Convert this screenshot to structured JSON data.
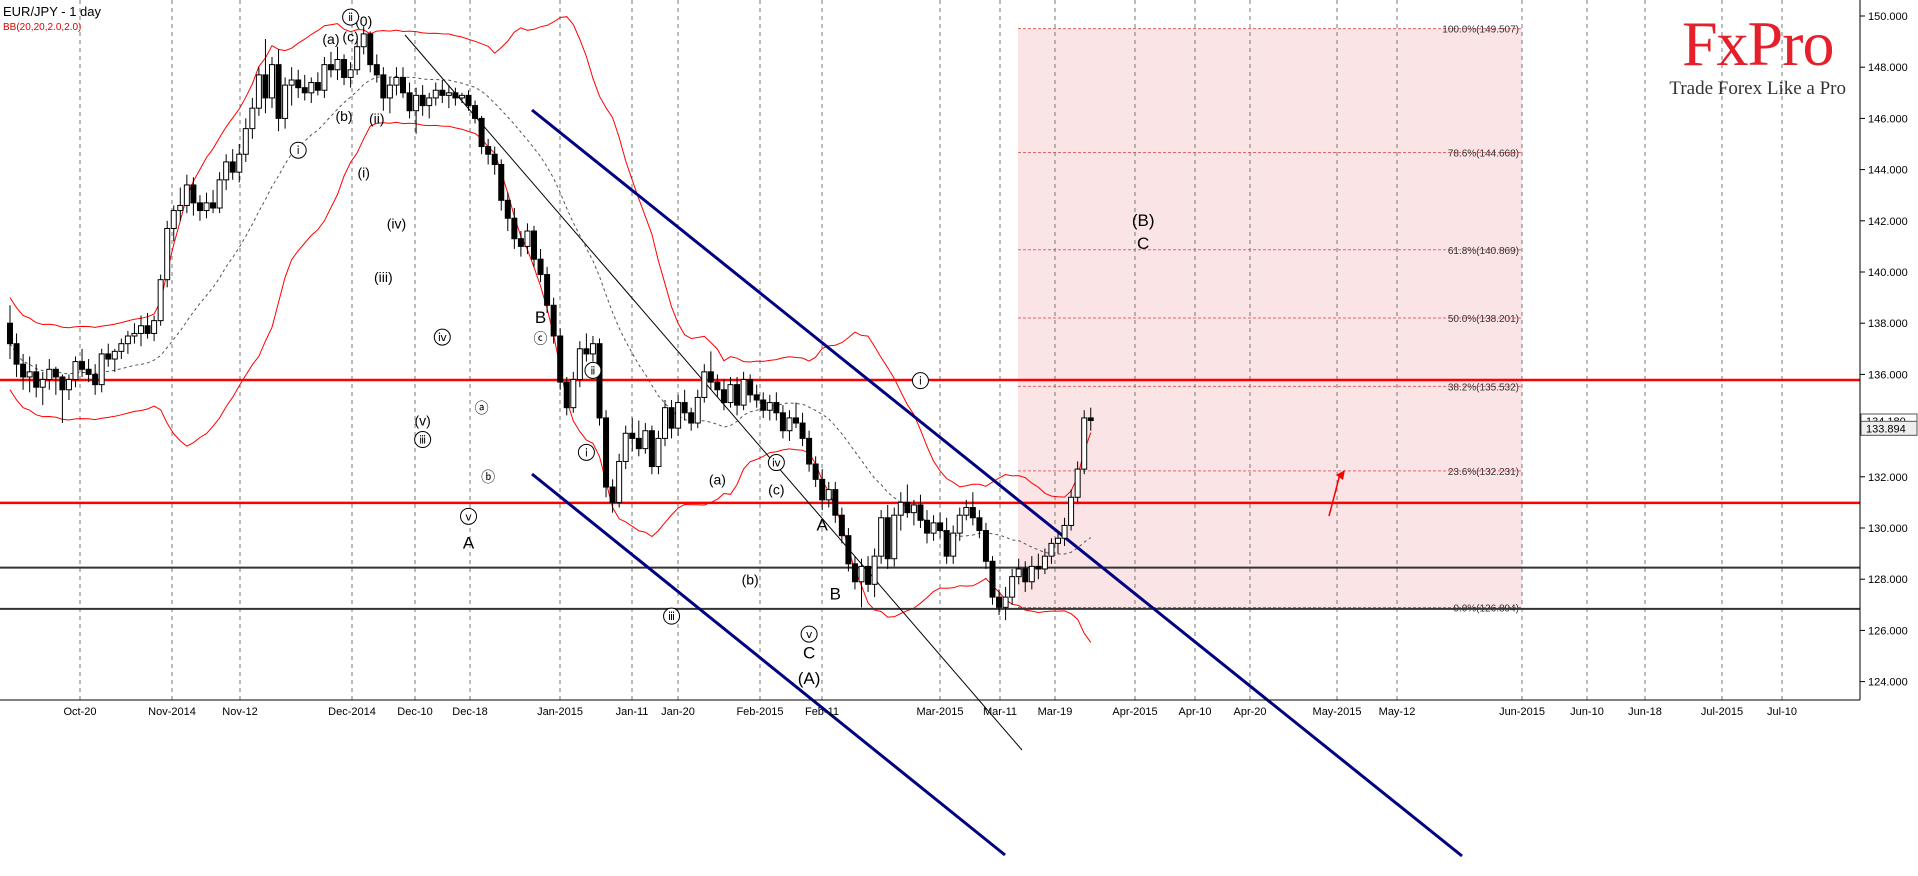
{
  "header": {
    "symbol": "EUR/JPY - 1 day",
    "indicator": "BB(20,20,2.0,2.0)"
  },
  "brand": {
    "name": "FxPro",
    "tagline": "Trade Forex Like a Pro"
  },
  "colors": {
    "bb_band": "#ff0000",
    "channel": "#000080",
    "support_red": "#ff0000",
    "support_black": "#333333",
    "fib_zone": "#fbe4e6",
    "candle_up": "#ffffff",
    "candle_down": "#000000"
  },
  "chart_data": {
    "type": "candlestick",
    "title": "EUR/JPY - 1 day",
    "x_ticks": [
      "Oct-20",
      "Nov-2014",
      "Nov-12",
      "Dec-2014",
      "Dec-10",
      "Dec-18",
      "Jan-2015",
      "Jan-11",
      "Jan-20",
      "Feb-2015",
      "Feb-11",
      "Mar-2015",
      "Mar-11",
      "Mar-19",
      "Apr-2015",
      "Apr-10",
      "Apr-20",
      "May-2015",
      "May-12",
      "Jun-2015",
      "Jun-10",
      "Jun-18",
      "Jul-2015",
      "Jul-10"
    ],
    "y_ticks": [
      "150.000",
      "148.000",
      "146.000",
      "144.000",
      "142.000",
      "140.000",
      "138.000",
      "136.000",
      "134.000",
      "132.000",
      "130.000",
      "128.000",
      "126.000",
      "124.000"
    ],
    "ylim": [
      123.4,
      150.3
    ],
    "price_labels": {
      "current": "134.180",
      "second": "133.894"
    },
    "fib_levels": [
      {
        "label": "100.0%(149.507)",
        "price": 149.507
      },
      {
        "label": "78.6%(144.668)",
        "price": 144.668
      },
      {
        "label": "61.8%(140.869)",
        "price": 140.869
      },
      {
        "label": "50.0%(138.201)",
        "price": 138.201
      },
      {
        "label": "38.2%(135.532)",
        "price": 135.532
      },
      {
        "label": "23.6%(132.231)",
        "price": 132.231
      },
      {
        "label": "0.0%(126.894)",
        "price": 126.894
      }
    ],
    "horizontal_levels": [
      {
        "price": 135.78,
        "color": "red"
      },
      {
        "price": 130.98,
        "color": "red"
      },
      {
        "price": 128.45,
        "color": "black"
      },
      {
        "price": 126.84,
        "color": "black"
      }
    ],
    "candles": [
      [
        138.0,
        138.7,
        136.6,
        137.2
      ],
      [
        137.2,
        137.6,
        135.9,
        136.4
      ],
      [
        136.4,
        136.8,
        135.4,
        135.9
      ],
      [
        135.9,
        136.7,
        135.3,
        136.1
      ],
      [
        136.1,
        136.4,
        135.1,
        135.5
      ],
      [
        135.5,
        136.1,
        134.8,
        135.8
      ],
      [
        135.8,
        136.6,
        135.4,
        136.2
      ],
      [
        136.2,
        136.3,
        135.2,
        135.9
      ],
      [
        135.9,
        136.0,
        134.1,
        135.4
      ],
      [
        135.4,
        136.0,
        135.0,
        135.8
      ],
      [
        135.8,
        136.7,
        135.5,
        136.5
      ],
      [
        136.5,
        137.0,
        135.9,
        136.2
      ],
      [
        136.2,
        136.6,
        135.7,
        136.0
      ],
      [
        136.0,
        136.4,
        135.2,
        135.6
      ],
      [
        135.6,
        137.0,
        135.3,
        136.8
      ],
      [
        136.8,
        137.2,
        136.3,
        136.6
      ],
      [
        136.6,
        137.0,
        136.1,
        136.9
      ],
      [
        136.9,
        137.4,
        136.6,
        137.2
      ],
      [
        137.2,
        137.7,
        136.8,
        137.5
      ],
      [
        137.5,
        138.0,
        137.2,
        137.6
      ],
      [
        137.6,
        138.3,
        137.1,
        137.9
      ],
      [
        137.9,
        138.4,
        137.4,
        137.6
      ],
      [
        137.6,
        138.3,
        137.3,
        138.1
      ],
      [
        138.1,
        139.9,
        137.9,
        139.7
      ],
      [
        139.7,
        142.0,
        139.4,
        141.7
      ],
      [
        141.7,
        142.6,
        141.2,
        142.4
      ],
      [
        142.4,
        143.3,
        142.0,
        142.6
      ],
      [
        142.6,
        143.8,
        142.3,
        143.4
      ],
      [
        143.4,
        143.7,
        142.2,
        142.7
      ],
      [
        142.7,
        143.0,
        142.0,
        142.4
      ],
      [
        142.4,
        143.1,
        142.1,
        142.7
      ],
      [
        142.7,
        143.2,
        142.3,
        142.5
      ],
      [
        142.5,
        143.9,
        142.3,
        143.6
      ],
      [
        143.6,
        144.6,
        143.2,
        144.3
      ],
      [
        144.3,
        144.8,
        143.6,
        143.9
      ],
      [
        143.9,
        145.0,
        143.5,
        144.6
      ],
      [
        144.6,
        146.0,
        144.3,
        145.6
      ],
      [
        145.6,
        146.8,
        145.2,
        146.4
      ],
      [
        146.4,
        148.0,
        146.1,
        147.7
      ],
      [
        147.7,
        149.1,
        146.2,
        146.8
      ],
      [
        146.8,
        148.4,
        146.4,
        148.1
      ],
      [
        148.1,
        148.7,
        145.5,
        146.0
      ],
      [
        146.0,
        147.6,
        145.6,
        147.3
      ],
      [
        147.3,
        148.0,
        146.5,
        147.5
      ],
      [
        147.5,
        147.9,
        146.8,
        147.2
      ],
      [
        147.2,
        147.7,
        146.7,
        147.0
      ],
      [
        147.0,
        147.6,
        146.6,
        147.4
      ],
      [
        147.4,
        147.8,
        146.9,
        147.1
      ],
      [
        147.1,
        148.4,
        146.8,
        148.1
      ],
      [
        148.1,
        148.6,
        147.6,
        147.9
      ],
      [
        147.9,
        148.8,
        147.5,
        148.3
      ],
      [
        148.3,
        148.5,
        147.3,
        147.6
      ],
      [
        147.6,
        148.2,
        147.2,
        147.9
      ],
      [
        147.9,
        149.1,
        147.7,
        148.8
      ],
      [
        148.8,
        149.6,
        148.5,
        149.3
      ],
      [
        149.3,
        149.4,
        147.8,
        148.1
      ],
      [
        148.1,
        148.5,
        147.4,
        147.7
      ],
      [
        147.7,
        148.0,
        146.3,
        146.8
      ],
      [
        146.8,
        147.6,
        146.2,
        147.3
      ],
      [
        147.3,
        148.0,
        146.9,
        147.6
      ],
      [
        147.6,
        148.0,
        146.8,
        147.0
      ],
      [
        147.0,
        147.4,
        146.0,
        146.3
      ],
      [
        146.3,
        147.2,
        145.4,
        146.9
      ],
      [
        146.9,
        147.3,
        146.1,
        146.5
      ],
      [
        146.5,
        147.0,
        146.0,
        146.8
      ],
      [
        146.8,
        147.4,
        146.5,
        147.1
      ],
      [
        147.1,
        147.5,
        146.6,
        146.9
      ],
      [
        146.9,
        147.3,
        146.4,
        147.0
      ],
      [
        147.0,
        147.2,
        146.5,
        146.8
      ],
      [
        146.8,
        147.0,
        146.6,
        146.9
      ],
      [
        146.9,
        147.1,
        146.3,
        146.5
      ],
      [
        146.5,
        146.7,
        145.8,
        146.0
      ],
      [
        146.0,
        146.1,
        144.6,
        144.9
      ],
      [
        144.9,
        145.2,
        144.2,
        144.6
      ],
      [
        144.6,
        144.9,
        143.8,
        144.2
      ],
      [
        144.2,
        144.4,
        142.4,
        142.8
      ],
      [
        142.8,
        143.1,
        141.6,
        142.1
      ],
      [
        142.1,
        142.5,
        140.9,
        141.3
      ],
      [
        141.3,
        141.6,
        140.6,
        141.0
      ],
      [
        141.0,
        141.9,
        140.7,
        141.6
      ],
      [
        141.6,
        141.8,
        140.2,
        140.5
      ],
      [
        140.5,
        140.9,
        139.6,
        139.9
      ],
      [
        139.9,
        140.2,
        138.4,
        138.7
      ],
      [
        138.7,
        139.0,
        137.2,
        137.5
      ],
      [
        137.5,
        137.8,
        135.4,
        135.7
      ],
      [
        135.7,
        135.9,
        134.4,
        134.7
      ],
      [
        134.7,
        136.1,
        134.5,
        135.8
      ],
      [
        135.8,
        137.3,
        135.5,
        137.0
      ],
      [
        137.0,
        137.6,
        136.5,
        136.8
      ],
      [
        136.8,
        137.5,
        136.5,
        137.2
      ],
      [
        137.2,
        137.4,
        134.0,
        134.3
      ],
      [
        134.3,
        134.6,
        131.2,
        131.6
      ],
      [
        131.6,
        131.9,
        130.6,
        131.0
      ],
      [
        131.0,
        132.9,
        130.8,
        132.6
      ],
      [
        132.6,
        134.0,
        132.3,
        133.7
      ],
      [
        133.7,
        134.3,
        133.0,
        133.5
      ],
      [
        133.5,
        134.2,
        132.8,
        133.1
      ],
      [
        133.1,
        134.1,
        132.9,
        133.8
      ],
      [
        133.8,
        134.0,
        132.1,
        132.4
      ],
      [
        132.4,
        133.8,
        132.1,
        133.5
      ],
      [
        133.5,
        135.0,
        133.2,
        134.7
      ],
      [
        134.7,
        135.0,
        133.5,
        133.9
      ],
      [
        133.9,
        135.2,
        133.6,
        134.9
      ],
      [
        134.9,
        135.4,
        134.2,
        134.5
      ],
      [
        134.5,
        134.7,
        133.8,
        134.1
      ],
      [
        134.1,
        135.4,
        133.9,
        135.1
      ],
      [
        135.1,
        136.4,
        134.9,
        136.1
      ],
      [
        136.1,
        136.9,
        135.4,
        135.7
      ],
      [
        135.7,
        136.0,
        135.1,
        135.4
      ],
      [
        135.4,
        135.8,
        134.6,
        134.9
      ],
      [
        134.9,
        135.9,
        134.7,
        135.6
      ],
      [
        135.6,
        135.9,
        134.4,
        134.8
      ],
      [
        134.8,
        136.1,
        134.6,
        135.8
      ],
      [
        135.8,
        136.0,
        134.9,
        135.2
      ],
      [
        135.2,
        135.6,
        134.7,
        135.0
      ],
      [
        135.0,
        135.3,
        134.3,
        134.6
      ],
      [
        134.6,
        135.2,
        134.2,
        134.9
      ],
      [
        134.9,
        135.3,
        134.2,
        134.5
      ],
      [
        134.5,
        134.8,
        133.5,
        133.8
      ],
      [
        133.8,
        134.6,
        133.4,
        134.3
      ],
      [
        134.3,
        134.9,
        133.9,
        134.1
      ],
      [
        134.1,
        134.5,
        133.2,
        133.5
      ],
      [
        133.5,
        133.8,
        132.2,
        132.5
      ],
      [
        132.5,
        132.8,
        131.6,
        131.9
      ],
      [
        131.9,
        132.3,
        130.7,
        131.1
      ],
      [
        131.1,
        131.8,
        130.8,
        131.5
      ],
      [
        131.5,
        131.8,
        130.2,
        130.5
      ],
      [
        130.5,
        130.8,
        129.4,
        129.7
      ],
      [
        129.7,
        130.0,
        128.3,
        128.6
      ],
      [
        128.6,
        128.9,
        127.6,
        127.9
      ],
      [
        127.9,
        128.8,
        126.9,
        128.5
      ],
      [
        128.5,
        128.9,
        127.5,
        127.8
      ],
      [
        127.8,
        129.2,
        127.3,
        128.9
      ],
      [
        128.9,
        130.7,
        128.6,
        130.4
      ],
      [
        130.4,
        130.9,
        128.4,
        128.8
      ],
      [
        128.8,
        130.8,
        128.5,
        130.5
      ],
      [
        130.5,
        131.4,
        129.9,
        131.0
      ],
      [
        131.0,
        131.7,
        130.4,
        130.6
      ],
      [
        130.6,
        131.1,
        130.1,
        130.9
      ],
      [
        130.9,
        131.3,
        130.0,
        130.3
      ],
      [
        130.3,
        130.7,
        129.4,
        129.8
      ],
      [
        129.8,
        130.5,
        129.5,
        130.2
      ],
      [
        130.2,
        130.6,
        129.6,
        129.9
      ],
      [
        129.9,
        130.4,
        128.6,
        128.9
      ],
      [
        128.9,
        130.1,
        128.6,
        129.8
      ],
      [
        129.8,
        130.8,
        129.5,
        130.5
      ],
      [
        130.5,
        131.1,
        130.3,
        130.8
      ],
      [
        130.8,
        131.4,
        130.1,
        130.4
      ],
      [
        130.4,
        130.7,
        129.6,
        129.9
      ],
      [
        129.9,
        130.2,
        128.4,
        128.7
      ],
      [
        128.7,
        128.9,
        127.0,
        127.3
      ],
      [
        127.3,
        127.6,
        126.6,
        126.9
      ],
      [
        126.9,
        127.7,
        126.4,
        127.3
      ],
      [
        127.3,
        128.4,
        127.0,
        128.1
      ],
      [
        128.1,
        128.8,
        127.8,
        128.4
      ],
      [
        128.4,
        128.7,
        127.5,
        127.9
      ],
      [
        127.9,
        128.9,
        127.6,
        128.5
      ],
      [
        128.5,
        129.0,
        128.0,
        128.4
      ],
      [
        128.4,
        129.2,
        128.2,
        128.9
      ],
      [
        128.9,
        129.6,
        128.6,
        129.4
      ],
      [
        129.4,
        129.9,
        129.0,
        129.6
      ],
      [
        129.6,
        130.4,
        129.3,
        130.1
      ],
      [
        130.1,
        131.5,
        129.9,
        131.2
      ],
      [
        131.2,
        132.6,
        131.0,
        132.3
      ],
      [
        132.3,
        134.6,
        132.1,
        134.3
      ],
      [
        134.3,
        134.7,
        133.8,
        134.2
      ]
    ],
    "wave_labels": [
      {
        "text": "(0)",
        "candle": 54,
        "price": 149.6,
        "style": "plain"
      },
      {
        "text": "ⅰ",
        "candle": 44,
        "price": 144.6,
        "style": "circle"
      },
      {
        "text": "(a)",
        "candle": 49,
        "price": 148.9,
        "style": "plain"
      },
      {
        "text": "(b)",
        "candle": 51,
        "price": 145.9,
        "style": "plain"
      },
      {
        "text": "(c)",
        "candle": 52,
        "price": 149.0,
        "style": "plain"
      },
      {
        "text": "ⅱ",
        "candle": 52,
        "price": 149.8,
        "style": "circle"
      },
      {
        "text": "(i)",
        "candle": 54,
        "price": 143.7,
        "style": "plain"
      },
      {
        "text": "(ii)",
        "candle": 56,
        "price": 145.8,
        "style": "plain"
      },
      {
        "text": "(iv)",
        "candle": 59,
        "price": 141.7,
        "style": "plain"
      },
      {
        "text": "(iii)",
        "candle": 57,
        "price": 139.6,
        "style": "plain"
      },
      {
        "text": "ⅳ",
        "candle": 66,
        "price": 137.3,
        "style": "circle"
      },
      {
        "text": "(v)",
        "candle": 63,
        "price": 134.0,
        "style": "plain"
      },
      {
        "text": "ⅲ",
        "candle": 63,
        "price": 133.3,
        "style": "circle"
      },
      {
        "text": "ⓐ",
        "candle": 72,
        "price": 134.5,
        "style": "plain"
      },
      {
        "text": "ⓑ",
        "candle": 73,
        "price": 131.8,
        "style": "plain"
      },
      {
        "text": "ⅴ",
        "candle": 70,
        "price": 130.3,
        "style": "circle"
      },
      {
        "text": "A",
        "candle": 70,
        "price": 129.2,
        "style": "big"
      },
      {
        "text": "B",
        "candle": 81,
        "price": 138.0,
        "style": "big"
      },
      {
        "text": "ⓒ",
        "candle": 81,
        "price": 137.2,
        "style": "plain"
      },
      {
        "text": "ⅱ",
        "candle": 89,
        "price": 136.0,
        "style": "circle"
      },
      {
        "text": "ⅰ",
        "candle": 88,
        "price": 132.8,
        "style": "circle"
      },
      {
        "text": "ⅲ",
        "candle": 101,
        "price": 126.4,
        "style": "circle"
      },
      {
        "text": "(a)",
        "candle": 108,
        "price": 131.7,
        "style": "plain"
      },
      {
        "text": "(b)",
        "candle": 113,
        "price": 127.8,
        "style": "plain"
      },
      {
        "text": "ⅳ",
        "candle": 117,
        "price": 132.4,
        "style": "circle"
      },
      {
        "text": "(c)",
        "candle": 117,
        "price": 131.3,
        "style": "plain"
      },
      {
        "text": "ⅴ",
        "candle": 122,
        "price": 125.7,
        "style": "circle"
      },
      {
        "text": "C",
        "candle": 122,
        "price": 124.9,
        "style": "big"
      },
      {
        "text": "(A)",
        "candle": 122,
        "price": 123.9,
        "style": "big"
      },
      {
        "text": "A",
        "candle": 124,
        "price": 129.9,
        "style": "big"
      },
      {
        "text": "B",
        "candle": 126,
        "price": 127.2,
        "style": "big"
      },
      {
        "text": "ⅰ",
        "candle": 139,
        "price": 135.6,
        "style": "circle"
      },
      {
        "text": "(B)",
        "candle": 173,
        "price": 141.8,
        "style": "big"
      },
      {
        "text": "C",
        "candle": 173,
        "price": 140.9,
        "style": "big"
      }
    ]
  }
}
